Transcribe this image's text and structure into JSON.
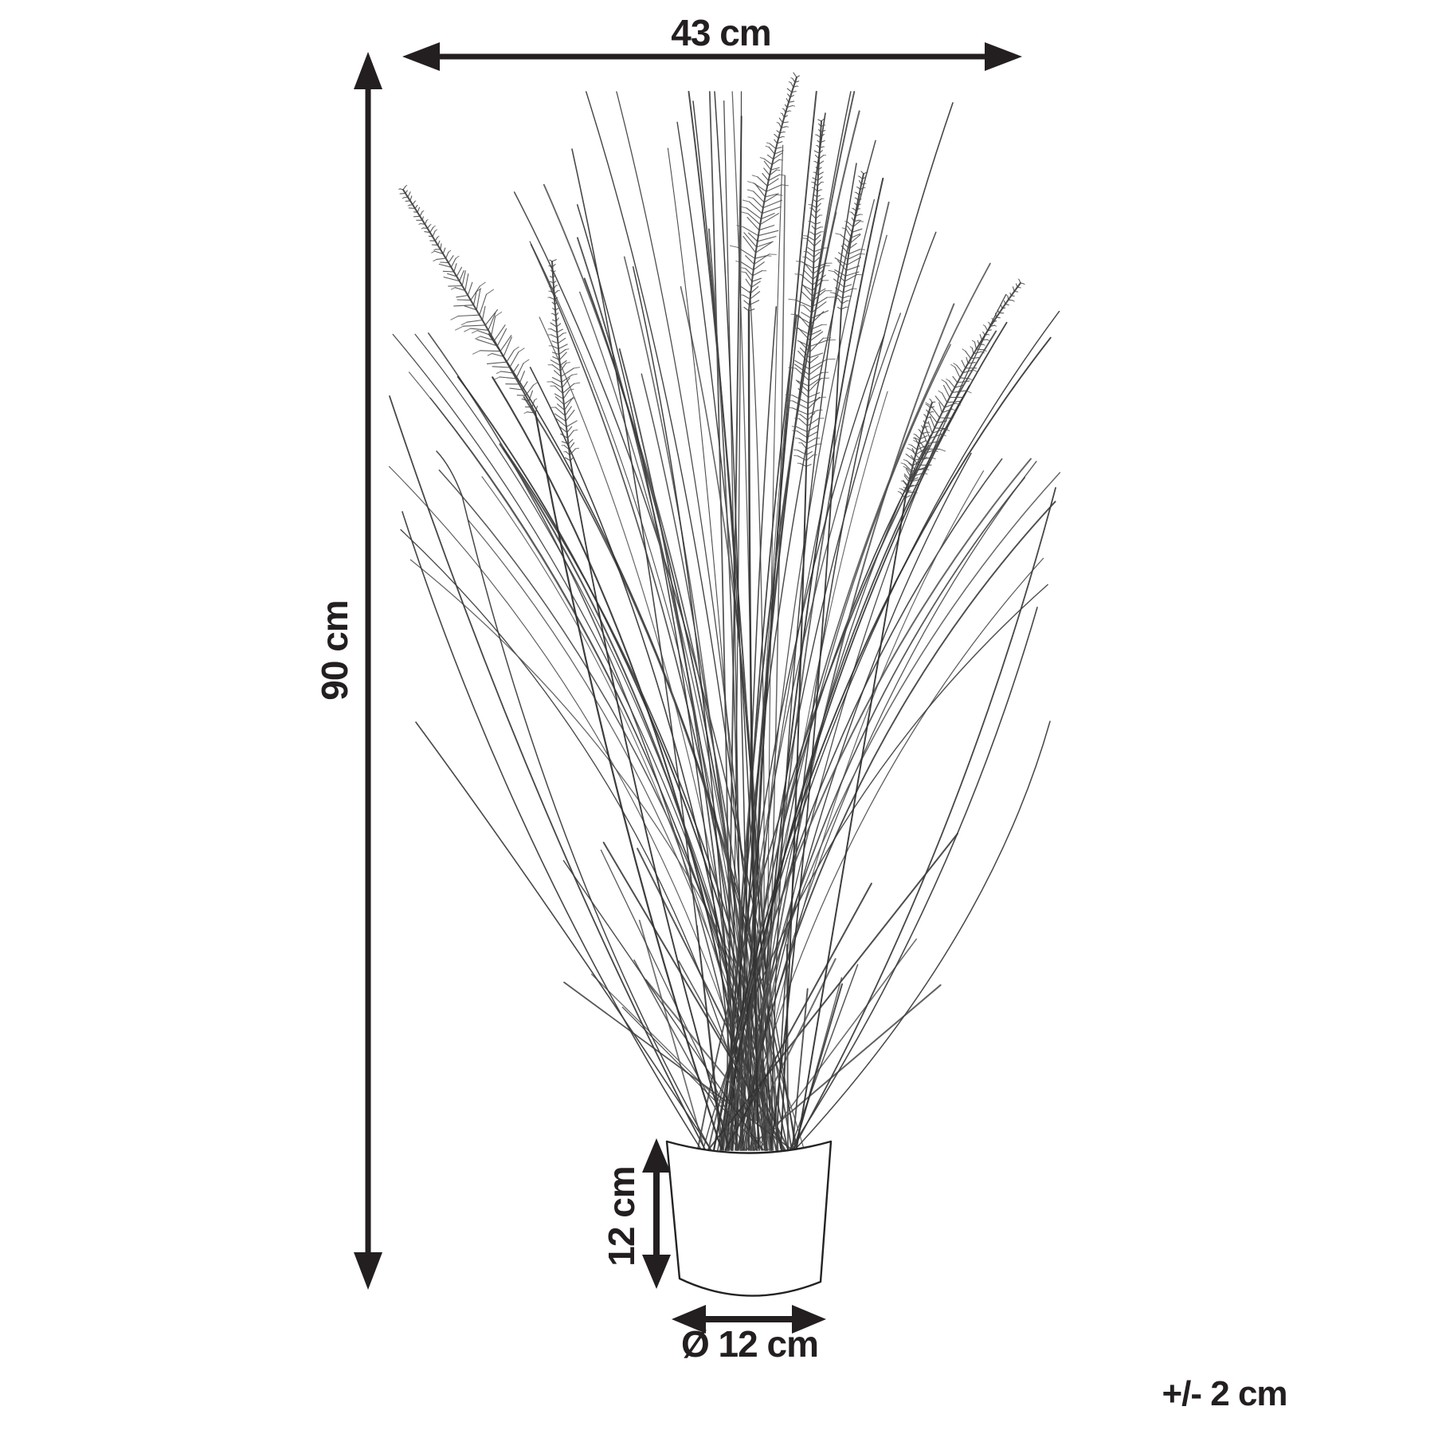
{
  "diagram": {
    "kind": "product-dimension-diagram",
    "subject": "artificial potted grass with foxtail plumes (line art)",
    "tolerance_note": "+/- 2 cm",
    "dimensions": {
      "width": {
        "label": "43 cm",
        "value": 43,
        "unit": "cm",
        "orientation": "horizontal",
        "measures": "overall plant width"
      },
      "height": {
        "label": "90 cm",
        "value": 90,
        "unit": "cm",
        "orientation": "vertical",
        "measures": "overall plant height"
      },
      "pot_height": {
        "label": "12 cm",
        "value": 12,
        "unit": "cm",
        "orientation": "vertical",
        "measures": "pot height"
      },
      "pot_diameter": {
        "label": "Ø 12 cm",
        "value": 12,
        "unit": "cm",
        "orientation": "horizontal",
        "measures": "pot diameter"
      }
    },
    "colors": {
      "background": "#ffffff",
      "annotation_ink": "#231f20",
      "sketch_line": "#454545",
      "sketch_dark": "#2f2f2f"
    }
  }
}
